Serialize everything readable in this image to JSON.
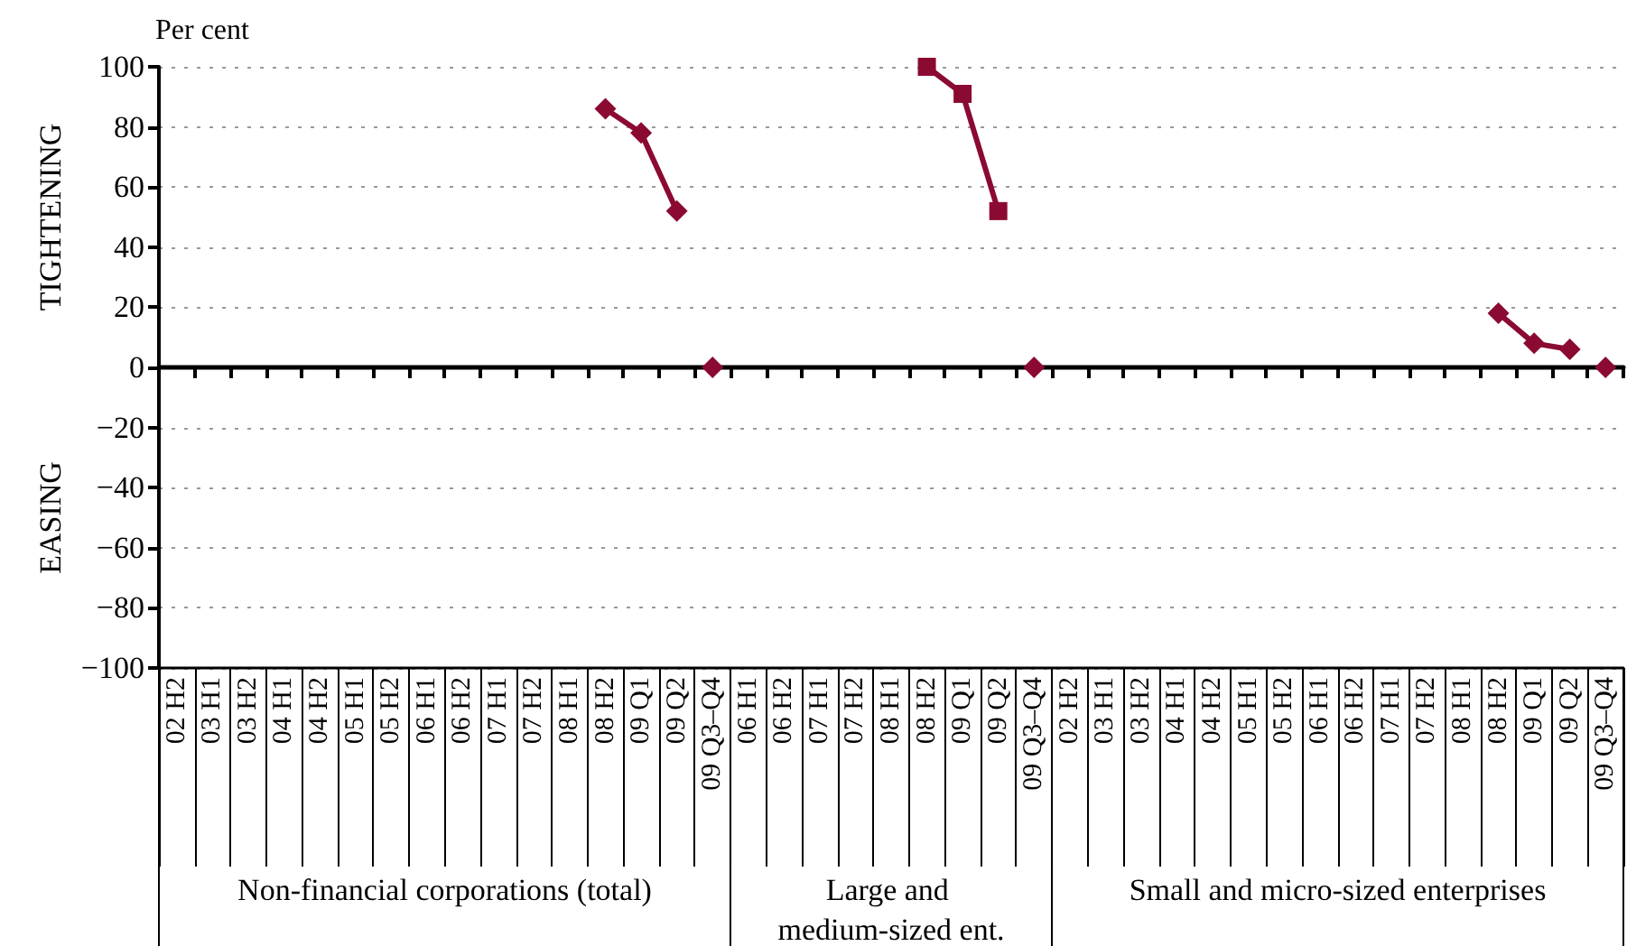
{
  "chart_data": {
    "type": "line",
    "ylabel": "Per cent",
    "categories": [
      "02 H2",
      "03 H1",
      "03 H2",
      "04 H1",
      "04 H2",
      "05 H1",
      "05 H2",
      "06 H1",
      "06 H2",
      "07 H1",
      "07 H2",
      "08 H1",
      "08 H2",
      "09 Q1",
      "09 Q2",
      "09 Q3–Q4",
      "06 H1",
      "06 H2",
      "07 H1",
      "07 H2",
      "08 H1",
      "08 H2",
      "09 Q1",
      "09 Q2",
      "09 Q3–Q4",
      "02 H2",
      "03 H1",
      "03 H2",
      "04 H1",
      "04 H2",
      "05 H1",
      "05 H2",
      "06 H1",
      "06 H2",
      "07 H1",
      "07 H2",
      "08 H1",
      "08 H2",
      "09 Q1",
      "09 Q2",
      "09 Q3–Q4"
    ],
    "series": [
      {
        "marker": "diamond",
        "color": "#8b0a32",
        "values": [
          null,
          null,
          null,
          null,
          null,
          null,
          null,
          null,
          null,
          null,
          null,
          null,
          86,
          78,
          52,
          null,
          null,
          null,
          null,
          null,
          null,
          null,
          null,
          null,
          null,
          null,
          null,
          null,
          null,
          null,
          null,
          null,
          null,
          null,
          null,
          null,
          null,
          18,
          8,
          6,
          null
        ]
      },
      {
        "marker": "square",
        "color": "#8b0a32",
        "values": [
          null,
          null,
          null,
          null,
          null,
          null,
          null,
          null,
          null,
          null,
          null,
          null,
          null,
          null,
          null,
          null,
          null,
          null,
          null,
          null,
          null,
          100,
          91,
          52,
          null,
          null,
          null,
          null,
          null,
          null,
          null,
          null,
          null,
          null,
          null,
          null,
          null,
          null,
          null,
          null,
          null
        ]
      },
      {
        "type": "scatter",
        "marker": "diamond",
        "color": "#8b0a32",
        "values": [
          null,
          null,
          null,
          null,
          null,
          null,
          null,
          null,
          null,
          null,
          null,
          null,
          null,
          null,
          null,
          0,
          null,
          null,
          null,
          null,
          null,
          null,
          null,
          null,
          0,
          null,
          null,
          null,
          null,
          null,
          null,
          null,
          null,
          null,
          null,
          null,
          null,
          null,
          null,
          null,
          0
        ]
      }
    ],
    "ylim": [
      -100,
      100
    ],
    "yticks": [
      {
        "value": -100,
        "label": "−100"
      },
      {
        "value": -80,
        "label": "−80"
      },
      {
        "value": -60,
        "label": "−60"
      },
      {
        "value": -40,
        "label": "−40"
      },
      {
        "value": -20,
        "label": "−20"
      },
      0,
      20,
      40,
      60,
      80,
      100
    ],
    "grid": "y",
    "line_style": "solid",
    "annotations": [
      "TIGHTENING",
      "EASING",
      "Non-financial corporations (total)",
      "Large and medium-sized ent.",
      "Small and micro-sized enterprises"
    ]
  }
}
